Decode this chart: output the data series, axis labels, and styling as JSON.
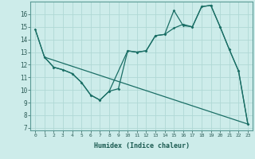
{
  "xlabel": "Humidex (Indice chaleur)",
  "bg_color": "#cdecea",
  "line_color": "#1a6e65",
  "grid_color": "#b0d8d5",
  "xlim": [
    -0.5,
    23.5
  ],
  "ylim": [
    6.8,
    17.0
  ],
  "yticks": [
    7,
    8,
    9,
    10,
    11,
    12,
    13,
    14,
    15,
    16
  ],
  "xticks": [
    0,
    1,
    2,
    3,
    4,
    5,
    6,
    7,
    8,
    9,
    10,
    11,
    12,
    13,
    14,
    15,
    16,
    17,
    18,
    19,
    20,
    21,
    22,
    23
  ],
  "line1_x": [
    0,
    1,
    2,
    3,
    4,
    5,
    6,
    7,
    8,
    9,
    10,
    11,
    12,
    13,
    14,
    15,
    16,
    17,
    18,
    19,
    20,
    21,
    22,
    23
  ],
  "line1_y": [
    14.8,
    12.6,
    11.8,
    11.6,
    11.3,
    10.6,
    9.6,
    9.2,
    9.9,
    10.1,
    13.1,
    13.0,
    13.1,
    14.3,
    14.4,
    16.3,
    15.1,
    15.0,
    16.6,
    16.7,
    15.0,
    13.2,
    11.5,
    7.3
  ],
  "line2_x": [
    1,
    2,
    3,
    4,
    5,
    6,
    7,
    8,
    10,
    11,
    12,
    13,
    14,
    15,
    16,
    17,
    18,
    19,
    20,
    21,
    22,
    23
  ],
  "line2_y": [
    12.6,
    11.8,
    11.6,
    11.3,
    10.6,
    9.6,
    9.2,
    9.9,
    13.1,
    13.0,
    13.1,
    14.3,
    14.4,
    14.9,
    15.2,
    15.0,
    16.6,
    16.7,
    15.0,
    13.2,
    11.5,
    7.3
  ],
  "line3_x": [
    0,
    1,
    23
  ],
  "line3_y": [
    14.8,
    12.6,
    7.3
  ]
}
